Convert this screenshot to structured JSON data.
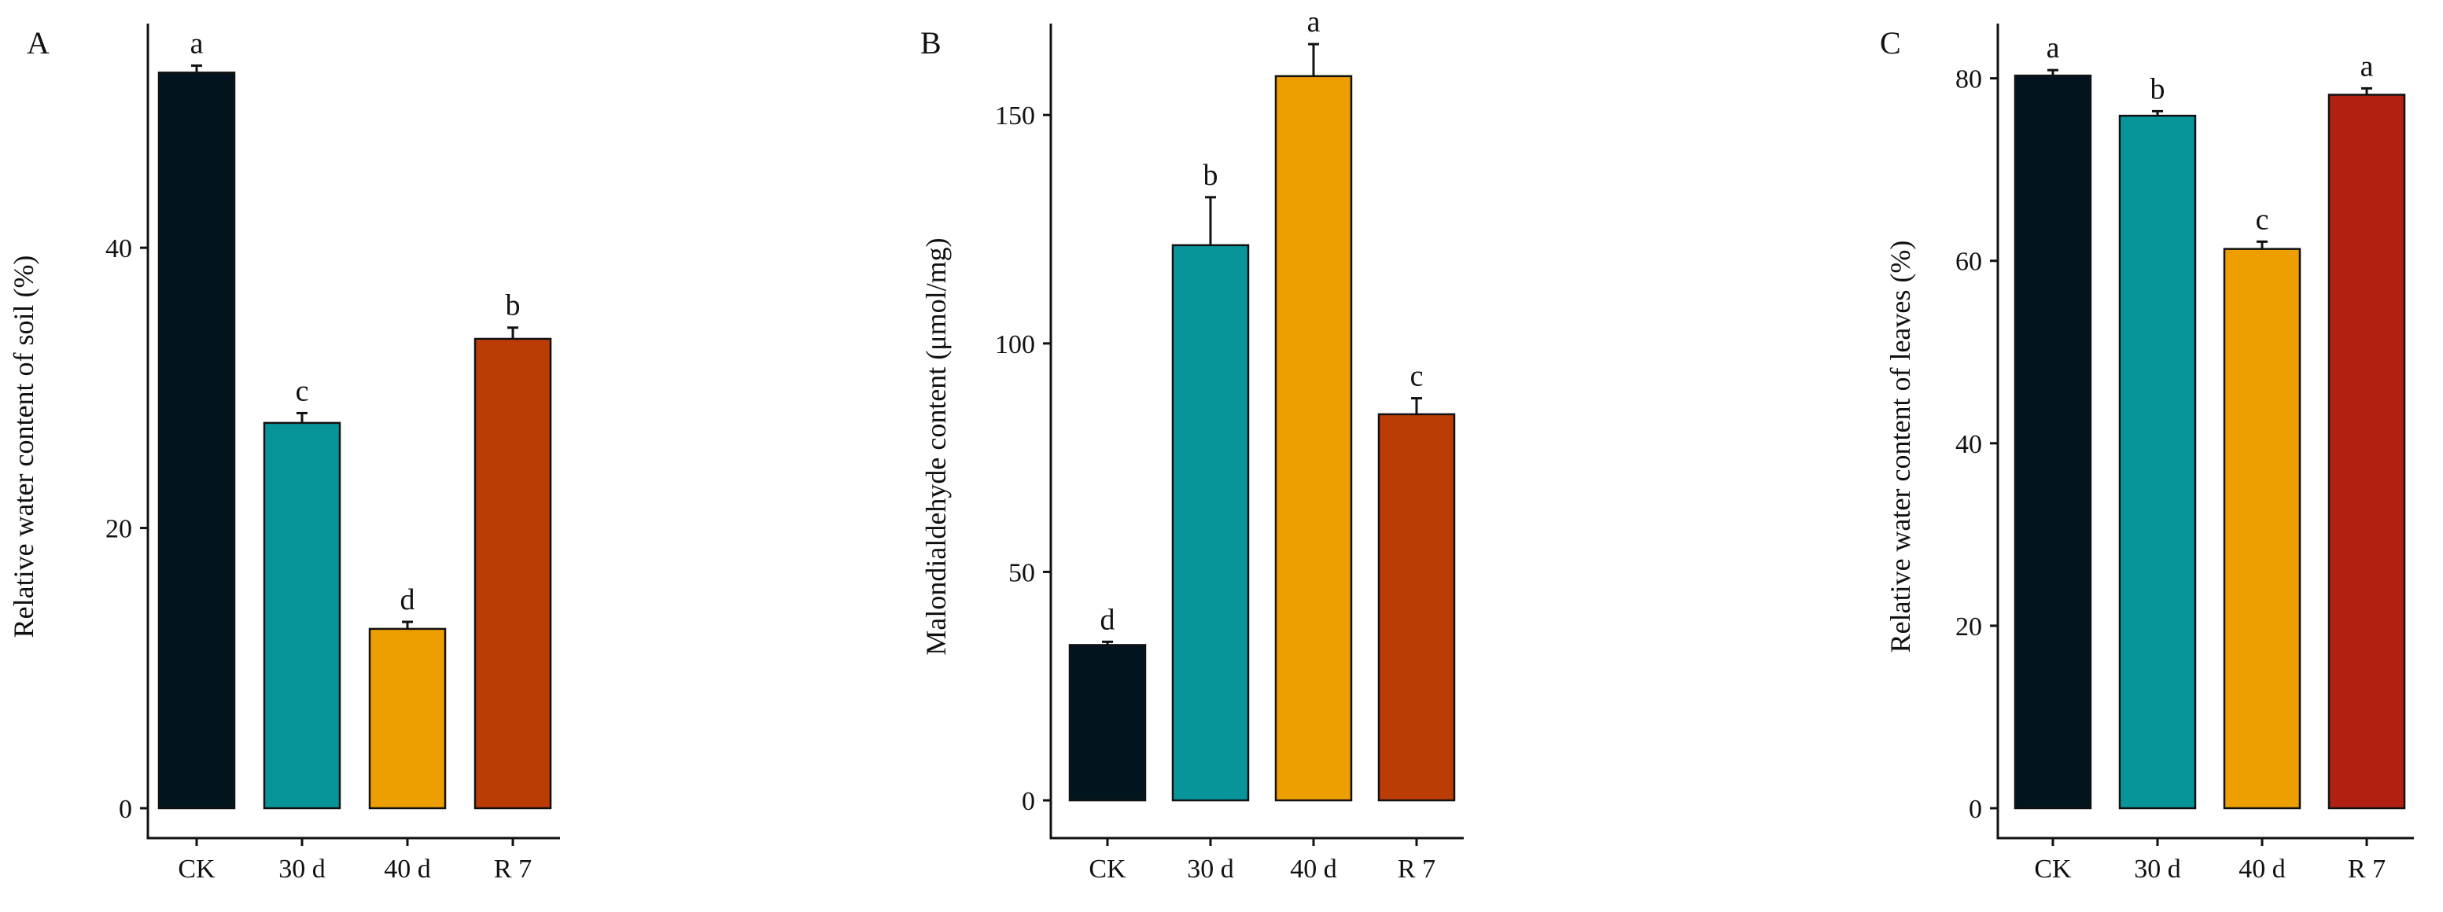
{
  "chart_data": [
    {
      "panel": "A",
      "type": "bar",
      "categories": [
        "CK",
        "30 d",
        "40 d",
        "R 7"
      ],
      "values": [
        52.5,
        27.5,
        12.8,
        33.5
      ],
      "errors": [
        0.5,
        0.7,
        0.5,
        0.8
      ],
      "significance": [
        "a",
        "c",
        "d",
        "b"
      ],
      "colors": [
        "#02151f",
        "#07959a",
        "#ed9e00",
        "#bb3c05"
      ],
      "ylabel": "Relative water content of soil (%)",
      "xlabel": "",
      "ylim": [
        0,
        56
      ],
      "yticks": [
        0,
        20,
        40
      ]
    },
    {
      "panel": "B",
      "type": "bar",
      "categories": [
        "CK",
        "30 d",
        "40 d",
        "R 7"
      ],
      "values": [
        34,
        121.5,
        158.5,
        84.5
      ],
      "errors": [
        0.7,
        10.5,
        7,
        3.5
      ],
      "significance": [
        "d",
        "b",
        "a",
        "c"
      ],
      "colors": [
        "#02151f",
        "#07959a",
        "#ed9e00",
        "#bb3c05"
      ],
      "ylabel": "Malondialdehyde content (μmol/mg)",
      "xlabel": "",
      "ylim": [
        0,
        170
      ],
      "yticks": [
        0,
        50,
        100,
        150
      ]
    },
    {
      "panel": "C",
      "type": "bar",
      "categories": [
        "CK",
        "30 d",
        "40 d",
        "R 7"
      ],
      "values": [
        80.3,
        75.9,
        61.3,
        78.2
      ],
      "errors": [
        0.6,
        0.5,
        0.8,
        0.7
      ],
      "significance": [
        "a",
        "b",
        "c",
        "a"
      ],
      "colors": [
        "#02151f",
        "#07959a",
        "#ed9e00",
        "#b22013"
      ],
      "ylabel": "Relative water content of leaves (%)",
      "xlabel": "",
      "ylim": [
        0,
        86
      ],
      "yticks": [
        0,
        20,
        40,
        60,
        80
      ]
    }
  ]
}
